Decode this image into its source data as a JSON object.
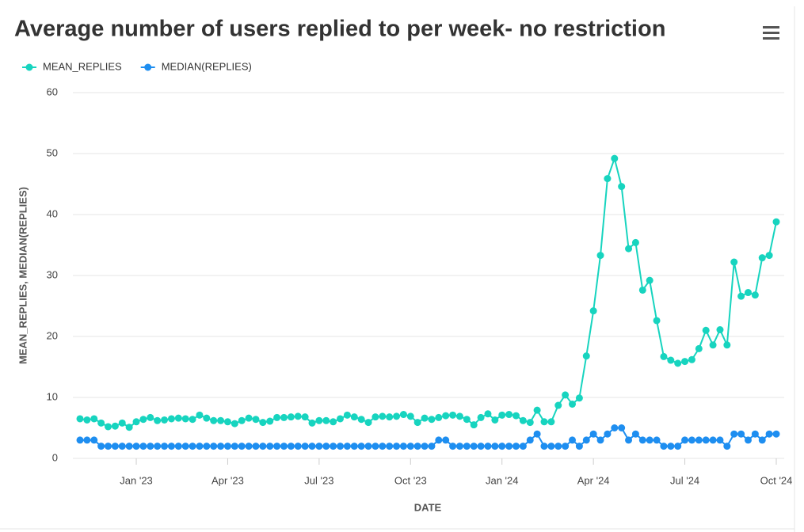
{
  "chart_data": {
    "type": "line",
    "title": "Average number of users replied to per week- no restriction",
    "xlabel": "DATE",
    "ylabel": "MEAN_REPLIES, MEDIAN(REPLIES)",
    "categories": [
      null,
      null,
      null,
      null,
      null,
      null,
      null,
      null,
      "Jan '23",
      null,
      null,
      null,
      null,
      null,
      null,
      null,
      null,
      null,
      null,
      null,
      null,
      "Apr '23",
      null,
      null,
      null,
      null,
      null,
      null,
      null,
      null,
      null,
      null,
      null,
      null,
      "Jul '23",
      null,
      null,
      null,
      null,
      null,
      null,
      null,
      null,
      null,
      null,
      null,
      null,
      "Oct '23",
      null,
      null,
      null,
      null,
      null,
      null,
      null,
      null,
      null,
      null,
      null,
      null,
      "Jan '24",
      null,
      null,
      null,
      null,
      null,
      null,
      null,
      null,
      null,
      null,
      null,
      null,
      "Apr '24",
      null,
      null,
      null,
      null,
      null,
      null,
      null,
      null,
      null,
      null,
      null,
      null,
      "Jul '24",
      null,
      null,
      null,
      null,
      null,
      null,
      null,
      null,
      null,
      null,
      null,
      null,
      "Oct '24"
    ],
    "series": [
      {
        "name": "MEAN_REPLIES",
        "color": "#17d4bf",
        "values": [
          6.5,
          6.3,
          6.5,
          5.8,
          5.2,
          5.3,
          5.8,
          5.1,
          6.0,
          6.4,
          6.7,
          6.2,
          6.3,
          6.5,
          6.6,
          6.5,
          6.4,
          7.1,
          6.6,
          6.2,
          6.2,
          6.0,
          5.7,
          6.2,
          6.6,
          6.4,
          5.9,
          6.1,
          6.7,
          6.7,
          6.8,
          6.9,
          6.8,
          5.8,
          6.2,
          6.2,
          6.0,
          6.5,
          7.1,
          6.8,
          6.4,
          5.9,
          6.8,
          6.9,
          6.8,
          6.9,
          7.2,
          6.9,
          5.9,
          6.6,
          6.4,
          6.7,
          7.0,
          7.1,
          6.9,
          6.4,
          5.5,
          6.7,
          7.3,
          6.3,
          7.1,
          7.2,
          7.0,
          6.2,
          5.9,
          7.9,
          6.0,
          6.0,
          8.7,
          10.4,
          8.9,
          9.9,
          16.8,
          24.2,
          33.3,
          45.9,
          49.2,
          44.6,
          34.4,
          35.4,
          27.6,
          29.2,
          22.6,
          16.7,
          16.1,
          15.6,
          15.9,
          16.2,
          18.0,
          21.0,
          18.6,
          21.1,
          18.6,
          32.2,
          26.6,
          27.2,
          26.8,
          32.9,
          33.3,
          38.8
        ]
      },
      {
        "name": "MEDIAN(REPLIES)",
        "color": "#1e8ef0",
        "values": [
          3,
          3,
          3,
          2,
          2,
          2,
          2,
          2,
          2,
          2,
          2,
          2,
          2,
          2,
          2,
          2,
          2,
          2,
          2,
          2,
          2,
          2,
          2,
          2,
          2,
          2,
          2,
          2,
          2,
          2,
          2,
          2,
          2,
          2,
          2,
          2,
          2,
          2,
          2,
          2,
          2,
          2,
          2,
          2,
          2,
          2,
          2,
          2,
          2,
          2,
          2,
          3,
          3,
          2,
          2,
          2,
          2,
          2,
          2,
          2,
          2,
          2,
          2,
          2,
          3,
          4,
          2,
          2,
          2,
          2,
          3,
          2,
          3,
          4,
          3,
          4,
          5,
          5,
          3,
          4,
          3,
          3,
          3,
          2,
          2,
          2,
          3,
          3,
          3,
          3,
          3,
          3,
          2,
          4,
          4,
          3,
          4,
          3,
          4,
          4
        ]
      }
    ],
    "ylim": [
      0,
      60
    ],
    "yticks": [
      0,
      10,
      20,
      30,
      40,
      50,
      60
    ],
    "grid": true,
    "legend": "top-left"
  }
}
